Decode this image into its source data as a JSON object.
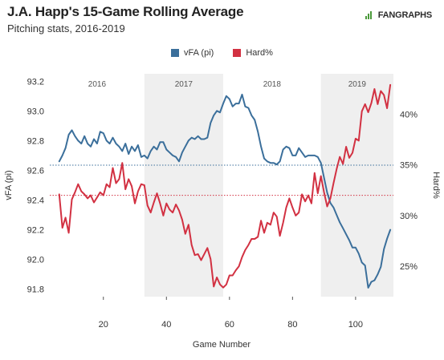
{
  "header": {
    "title": "J.A. Happ's 15-Game Rolling Average",
    "subtitle": "Pitching stats, 2016-2019",
    "brand_prefix": "",
    "brand_name": "FANGRAPHS"
  },
  "colors": {
    "vfa": "#3b6f9b",
    "hard": "#d23142",
    "band": "#efefef"
  },
  "chart_data": {
    "type": "line",
    "xlabel": "Game Number",
    "ylabel_left": "vFA (pi)",
    "ylabel_right": "Hard%",
    "xlim": [
      3,
      112
    ],
    "ylim_left": [
      91.75,
      93.25
    ],
    "ylim_right": [
      22.0,
      44.0
    ],
    "x_ticks": [
      20,
      40,
      60,
      80,
      100
    ],
    "y_left_ticks": [
      91.8,
      92.0,
      92.2,
      92.4,
      92.6,
      92.8,
      93.0,
      93.2
    ],
    "y_left_tick_labels": [
      "91.8",
      "92.0",
      "92.2",
      "92.4",
      "92.6",
      "92.8",
      "93.0",
      "93.2"
    ],
    "y_right_ticks": [
      25,
      30,
      35,
      40
    ],
    "y_right_tick_labels": [
      "25%",
      "30%",
      "35%",
      "40%"
    ],
    "season_bands": [
      {
        "label": "2016",
        "start": 3,
        "end": 33,
        "shaded": false
      },
      {
        "label": "2017",
        "start": 33,
        "end": 58,
        "shaded": true
      },
      {
        "label": "2018",
        "start": 58,
        "end": 89,
        "shaded": false
      },
      {
        "label": "2019",
        "start": 89,
        "end": 112,
        "shaded": true
      }
    ],
    "reference_lines": [
      {
        "series": "vFA (pi)",
        "axis": "left",
        "value": 92.635
      },
      {
        "series": "Hard%",
        "axis": "right",
        "value": 32.0
      }
    ],
    "series": [
      {
        "name": "vFA (pi)",
        "axis": "left",
        "x": [
          6,
          7,
          8,
          9,
          10,
          11,
          12,
          13,
          14,
          15,
          16,
          17,
          18,
          19,
          20,
          21,
          22,
          23,
          24,
          25,
          26,
          27,
          28,
          29,
          30,
          31,
          32,
          33,
          34,
          35,
          36,
          37,
          38,
          39,
          40,
          41,
          42,
          43,
          44,
          45,
          46,
          47,
          48,
          49,
          50,
          51,
          52,
          53,
          54,
          55,
          56,
          57,
          58,
          59,
          60,
          61,
          62,
          63,
          64,
          65,
          66,
          67,
          68,
          69,
          70,
          71,
          72,
          73,
          74,
          75,
          76,
          77,
          78,
          79,
          80,
          81,
          82,
          83,
          84,
          85,
          86,
          87,
          88,
          89,
          90,
          91,
          92,
          93,
          94,
          95,
          96,
          97,
          98,
          99,
          100,
          101,
          102,
          103,
          104,
          105,
          106,
          107,
          108,
          109,
          110,
          111
        ],
        "y": [
          92.66,
          92.7,
          92.75,
          92.84,
          92.87,
          92.83,
          92.8,
          92.78,
          92.83,
          92.78,
          92.76,
          92.81,
          92.78,
          92.86,
          92.85,
          92.8,
          92.78,
          92.82,
          92.78,
          92.76,
          92.73,
          92.78,
          92.71,
          92.76,
          92.73,
          92.77,
          92.69,
          92.7,
          92.68,
          92.73,
          92.76,
          92.74,
          92.79,
          92.79,
          92.74,
          92.72,
          92.7,
          92.69,
          92.66,
          92.72,
          92.76,
          92.8,
          92.82,
          92.81,
          92.83,
          92.81,
          92.81,
          92.82,
          92.92,
          92.97,
          93.0,
          92.99,
          93.05,
          93.1,
          93.08,
          93.03,
          93.05,
          93.05,
          93.11,
          93.03,
          93.02,
          92.97,
          92.94,
          92.86,
          92.76,
          92.68,
          92.66,
          92.65,
          92.65,
          92.64,
          92.66,
          92.74,
          92.76,
          92.75,
          92.7,
          92.7,
          92.75,
          92.72,
          92.69,
          92.7,
          92.7,
          92.7,
          92.69,
          92.65,
          92.55,
          92.45,
          92.38,
          92.35,
          92.3,
          92.25,
          92.21,
          92.17,
          92.13,
          92.08,
          92.08,
          92.04,
          91.98,
          91.96,
          91.81,
          91.85,
          91.86,
          91.9,
          91.95,
          92.07,
          92.14,
          92.2
        ]
      },
      {
        "name": "Hard%",
        "axis": "right",
        "x": [
          6,
          7,
          8,
          9,
          10,
          11,
          12,
          13,
          14,
          15,
          16,
          17,
          18,
          19,
          20,
          21,
          22,
          23,
          24,
          25,
          26,
          27,
          28,
          29,
          30,
          31,
          32,
          33,
          34,
          35,
          36,
          37,
          38,
          39,
          40,
          41,
          42,
          43,
          44,
          45,
          46,
          47,
          48,
          49,
          50,
          51,
          52,
          53,
          54,
          55,
          56,
          57,
          58,
          59,
          60,
          61,
          62,
          63,
          64,
          65,
          66,
          67,
          68,
          69,
          70,
          71,
          72,
          73,
          74,
          75,
          76,
          77,
          78,
          79,
          80,
          81,
          82,
          83,
          84,
          85,
          86,
          87,
          88,
          89,
          90,
          91,
          92,
          93,
          94,
          95,
          96,
          97,
          98,
          99,
          100,
          101,
          102,
          103,
          104,
          105,
          106,
          107,
          108,
          109,
          110,
          111
        ],
        "y": [
          32.1,
          28.8,
          29.8,
          28.3,
          31.6,
          32.3,
          33.1,
          32.4,
          32.1,
          31.7,
          32.0,
          31.3,
          31.8,
          32.3,
          32.0,
          33.1,
          32.8,
          34.7,
          33.2,
          33.6,
          35.2,
          32.6,
          33.6,
          32.9,
          31.2,
          32.4,
          33.1,
          33.0,
          31.0,
          30.3,
          31.3,
          32.2,
          31.2,
          30.0,
          31.2,
          30.6,
          30.3,
          31.1,
          30.5,
          29.6,
          28.2,
          29.1,
          27.1,
          26.1,
          26.2,
          25.6,
          26.2,
          26.8,
          25.7,
          23.0,
          23.9,
          23.2,
          22.9,
          23.2,
          24.1,
          24.1,
          24.6,
          25.0,
          25.9,
          26.6,
          27.1,
          27.7,
          27.7,
          27.9,
          29.5,
          28.3,
          29.3,
          29.1,
          30.3,
          29.9,
          28.0,
          29.3,
          30.8,
          31.7,
          30.8,
          30.0,
          30.3,
          32.1,
          31.4,
          32.0,
          31.2,
          34.2,
          32.2,
          33.9,
          32.3,
          30.9,
          31.7,
          33.2,
          34.6,
          35.8,
          35.1,
          36.8,
          35.7,
          36.2,
          37.6,
          37.4,
          40.3,
          41.0,
          40.2,
          41.1,
          42.5,
          41.0,
          42.3,
          41.9,
          40.6,
          42.9
        ]
      }
    ]
  }
}
